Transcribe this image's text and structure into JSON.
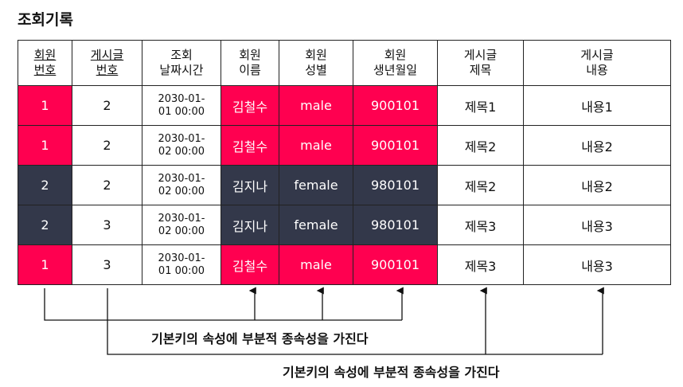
{
  "title": "조회기록",
  "columns": [
    {
      "line1": "회원",
      "line2": "번호",
      "key": true
    },
    {
      "line1": "게시글",
      "line2": "번호",
      "key": true
    },
    {
      "line1": "조회",
      "line2": "날짜시간",
      "key": false
    },
    {
      "line1": "회원",
      "line2": "이름",
      "key": false
    },
    {
      "line1": "회원",
      "line2": "성별",
      "key": false
    },
    {
      "line1": "회원",
      "line2": "생년월일",
      "key": false
    },
    {
      "line1": "게시글",
      "line2": "제목",
      "key": false
    },
    {
      "line1": "게시글",
      "line2": "내용",
      "key": false
    }
  ],
  "rows": [
    {
      "member_no": "1",
      "post_no": "2",
      "time1": "2030-01-",
      "time2": "01 00:00",
      "name": "김철수",
      "gender": "male",
      "birth": "900101",
      "post_title": "제목1",
      "post_content": "내용1",
      "group": "red"
    },
    {
      "member_no": "1",
      "post_no": "2",
      "time1": "2030-01-",
      "time2": "02 00:00",
      "name": "김철수",
      "gender": "male",
      "birth": "900101",
      "post_title": "제목2",
      "post_content": "내용2",
      "group": "red"
    },
    {
      "member_no": "2",
      "post_no": "2",
      "time1": "2030-01-",
      "time2": "02 00:00",
      "name": "김지나",
      "gender": "female",
      "birth": "980101",
      "post_title": "제목2",
      "post_content": "내용2",
      "group": "dark"
    },
    {
      "member_no": "2",
      "post_no": "3",
      "time1": "2030-01-",
      "time2": "02 00:00",
      "name": "김지나",
      "gender": "female",
      "birth": "980101",
      "post_title": "제목3",
      "post_content": "내용3",
      "group": "dark"
    },
    {
      "member_no": "1",
      "post_no": "3",
      "time1": "2030-01-",
      "time2": "01 00:00",
      "name": "김철수",
      "gender": "male",
      "birth": "900101",
      "post_title": "제목3",
      "post_content": "내용3",
      "group": "red"
    }
  ],
  "annotations": [
    {
      "text": "기본키의 속성에 부분적 종속성을 가진다"
    },
    {
      "text": "기본키의 속성에 부분적 종속성을 가진다"
    }
  ],
  "colors": {
    "highlight_red": "#ff0050",
    "highlight_dark": "#33384a"
  }
}
